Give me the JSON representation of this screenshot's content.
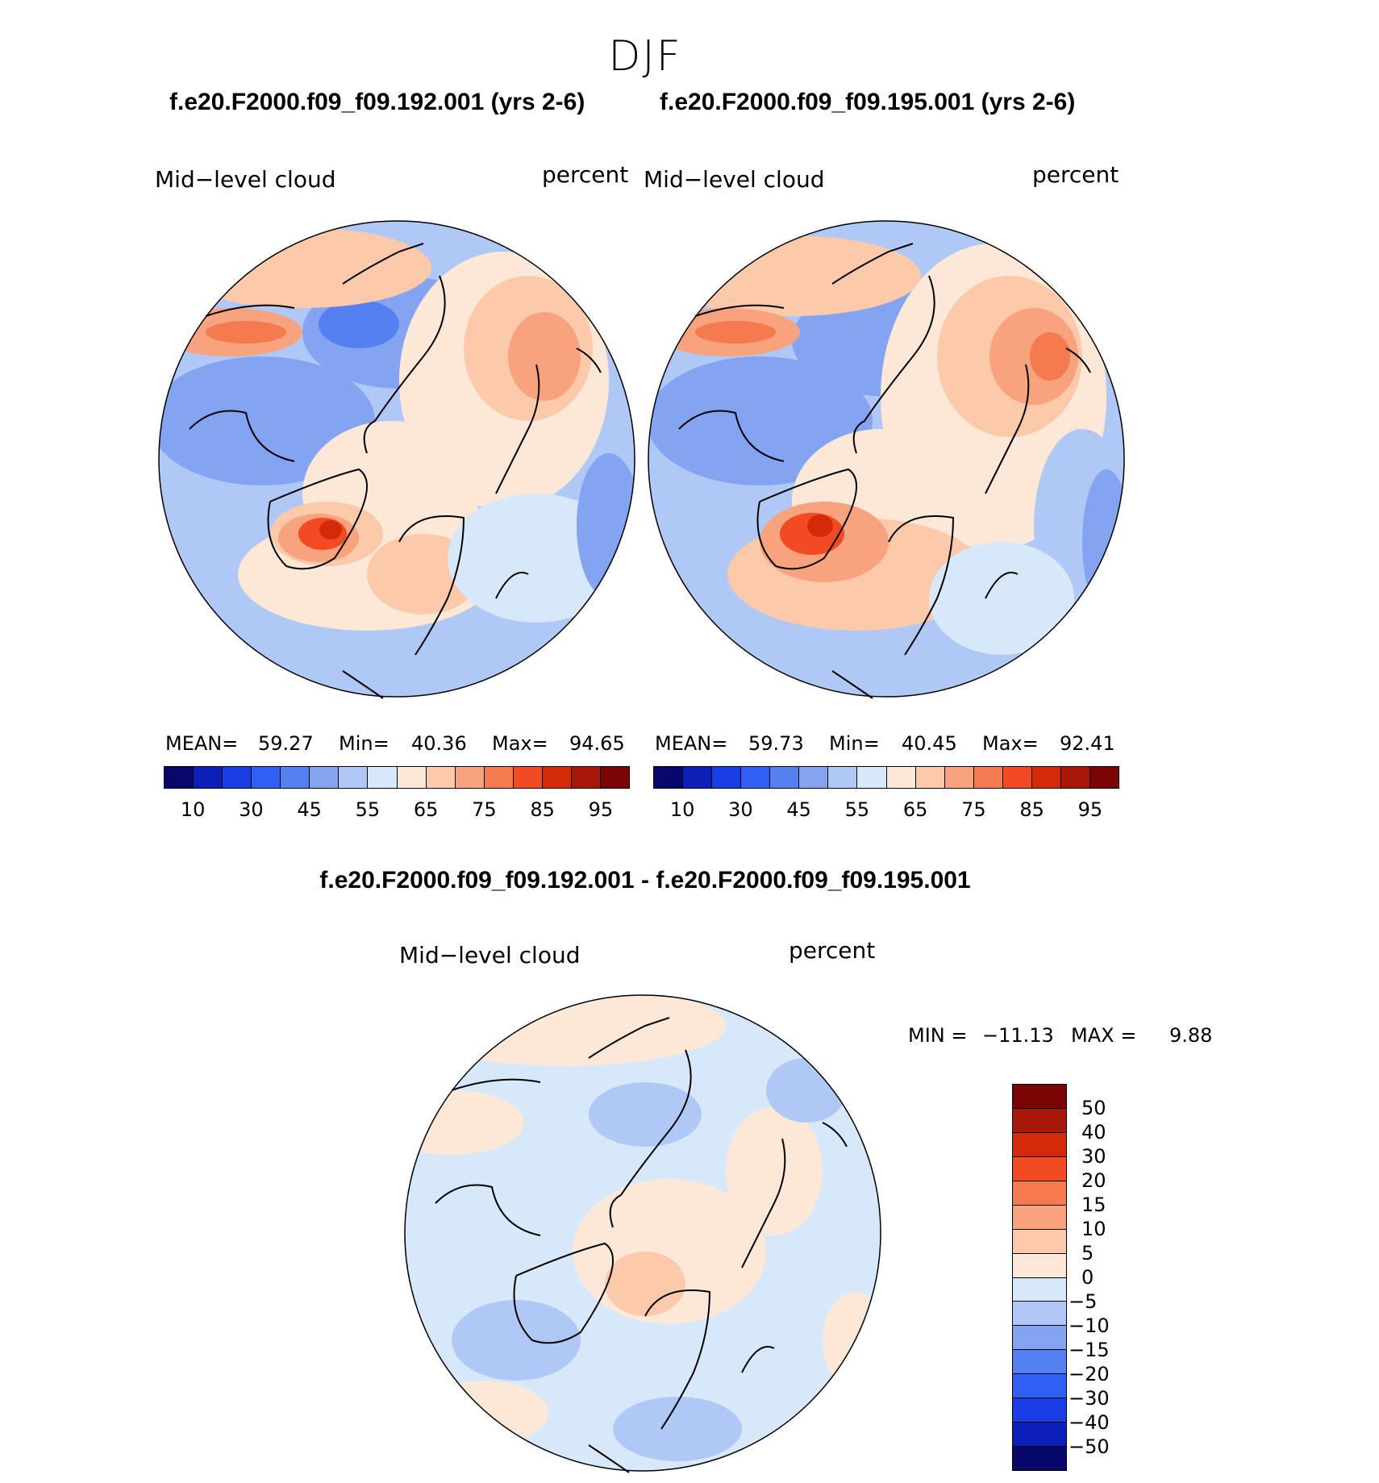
{
  "page_title": "DJF",
  "panels": [
    {
      "case_title": "f.e20.F2000.f09_f09.192.001 (yrs 2-6)",
      "variable": "Mid−level cloud",
      "units": "percent",
      "mean_label": "MEAN=",
      "mean_value": "59.27",
      "min_label": "Min=",
      "min_value": "40.36",
      "max_label": "Max=",
      "max_value": "94.65"
    },
    {
      "case_title": "f.e20.F2000.f09_f09.195.001 (yrs 2-6)",
      "variable": "Mid−level cloud",
      "units": "percent",
      "mean_label": "MEAN=",
      "mean_value": "59.73",
      "min_label": "Min=",
      "min_value": "40.45",
      "max_label": "Max=",
      "max_value": "92.41"
    }
  ],
  "diff_panel": {
    "case_title": "f.e20.F2000.f09_f09.192.001 - f.e20.F2000.f09_f09.195.001",
    "variable": "Mid−level cloud",
    "units": "percent",
    "min_label": "MIN =",
    "min_value": "−11.13",
    "max_label": "MAX =",
    "max_value": "9.88"
  },
  "chart_data": [
    {
      "type": "heatmap",
      "projection": "north polar stereographic",
      "title": "f.e20.F2000.f09_f09.192.001 (yrs 2-6)",
      "variable": "Mid-level cloud",
      "units": "percent",
      "mean": 59.27,
      "min": 40.36,
      "max": 94.65,
      "colorbar_ticks": [
        "10",
        "30",
        "45",
        "55",
        "65",
        "75",
        "85",
        "95"
      ],
      "colorbar_colors": [
        "#08086b",
        "#0a20b8",
        "#1a3ee6",
        "#2f5ff5",
        "#5580f2",
        "#84a4f2",
        "#b0c8f5",
        "#d8e8fb",
        "#fde8d8",
        "#fcc9aa",
        "#f8a37d",
        "#f57a50",
        "#f24a22",
        "#d42a0a",
        "#a81808",
        "#7a0505"
      ]
    },
    {
      "type": "heatmap",
      "projection": "north polar stereographic",
      "title": "f.e20.F2000.f09_f09.195.001 (yrs 2-6)",
      "variable": "Mid-level cloud",
      "units": "percent",
      "mean": 59.73,
      "min": 40.45,
      "max": 92.41,
      "colorbar_ticks": [
        "10",
        "30",
        "45",
        "55",
        "65",
        "75",
        "85",
        "95"
      ],
      "colorbar_colors": [
        "#08086b",
        "#0a20b8",
        "#1a3ee6",
        "#2f5ff5",
        "#5580f2",
        "#84a4f2",
        "#b0c8f5",
        "#d8e8fb",
        "#fde8d8",
        "#fcc9aa",
        "#f8a37d",
        "#f57a50",
        "#f24a22",
        "#d42a0a",
        "#a81808",
        "#7a0505"
      ]
    },
    {
      "type": "heatmap",
      "projection": "north polar stereographic",
      "title": "f.e20.F2000.f09_f09.192.001 - f.e20.F2000.f09_f09.195.001",
      "variable": "Mid-level cloud",
      "units": "percent",
      "min": -11.13,
      "max": 9.88,
      "colorbar_ticks": [
        "50",
        "40",
        "30",
        "20",
        "15",
        "10",
        "5",
        "0",
        "−5",
        "−10",
        "−15",
        "−20",
        "−30",
        "−40",
        "−50"
      ],
      "colorbar_colors": [
        "#7a0505",
        "#a81808",
        "#d42a0a",
        "#f24a22",
        "#f57a50",
        "#f8a37d",
        "#fcc9aa",
        "#fde8d8",
        "#d8e8fb",
        "#b0c8f5",
        "#84a4f2",
        "#5580f2",
        "#2f5ff5",
        "#1a3ee6",
        "#0a20b8",
        "#08086b"
      ]
    }
  ]
}
